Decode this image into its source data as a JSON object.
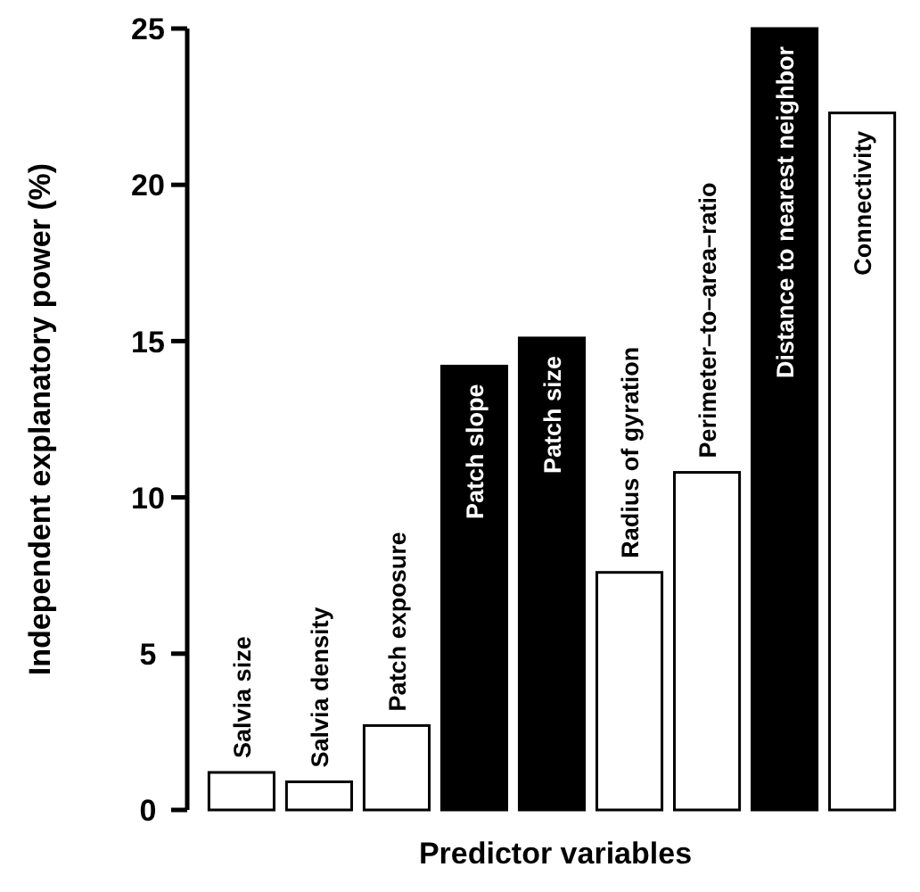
{
  "chart_data": {
    "type": "bar",
    "xlabel": "Predictor variables",
    "ylabel": "Independent explanatory power (%)",
    "categories": [
      "Salvia size",
      "Salvia density",
      "Patch exposure",
      "Patch slope",
      "Patch size",
      "Radius of gyration",
      "Perimeter–to–area–ratio",
      "Distance to nearest neighbor",
      "Connectivity"
    ],
    "values": [
      1.2,
      0.9,
      2.7,
      14.2,
      15.1,
      7.6,
      10.8,
      25.0,
      22.3
    ],
    "colors": [
      "#ffffff",
      "#ffffff",
      "#ffffff",
      "#000000",
      "#000000",
      "#ffffff",
      "#ffffff",
      "#000000",
      "#ffffff"
    ],
    "ylim": [
      0,
      25
    ],
    "yticks": [
      0,
      5,
      10,
      15,
      20,
      25
    ],
    "grid": false
  }
}
